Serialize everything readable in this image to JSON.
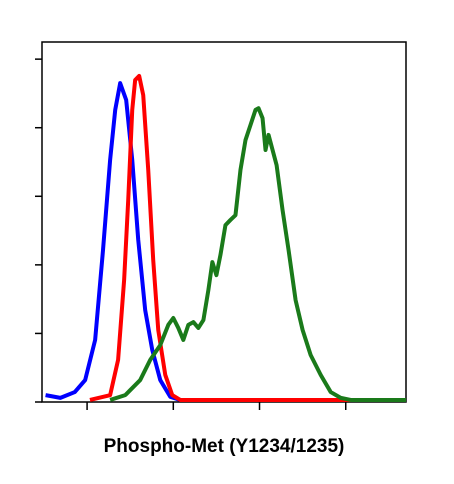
{
  "chart_data": {
    "type": "line",
    "x_label": "Phospho-Met (Y1234/1235)",
    "log_x": true,
    "xlim": [
      30,
      500000
    ],
    "xticks": [
      100,
      1000,
      10000,
      100000
    ],
    "ylim": [
      0,
      105
    ],
    "yticks": [
      0,
      20,
      40,
      60,
      80,
      100
    ],
    "grid": false,
    "series": [
      {
        "color": "#0000ff",
        "x": [
          33,
          49,
          72,
          95,
          124,
          153,
          185,
          212,
          242,
          284,
          334,
          392,
          472,
          570,
          706,
          923,
          1205
        ],
        "values": [
          2.0,
          1.2,
          2.9,
          6.4,
          18.1,
          44.3,
          70.6,
          85.2,
          93.0,
          88.1,
          70.6,
          47.3,
          26.8,
          15.2,
          6.4,
          1.5,
          0.6
        ]
      },
      {
        "color": "#ff0000",
        "x": [
          108,
          185,
          229,
          269,
          300,
          334,
          361,
          402,
          448,
          512,
          585,
          669,
          807,
          973,
          1205,
          500000
        ],
        "values": [
          0.6,
          2.0,
          12.3,
          35.6,
          58.9,
          85.2,
          93.9,
          95.1,
          89.5,
          67.7,
          41.4,
          21.0,
          7.9,
          2.0,
          0.6,
          0.6
        ]
      },
      {
        "color": "#1a7a1a",
        "x": [
          185,
          277,
          413,
          540,
          706,
          875,
          1000,
          1143,
          1307,
          1494,
          1709,
          1953,
          2234,
          2553,
          2838,
          3162,
          3523,
          4027,
          4603,
          5262,
          6015,
          6876,
          7860,
          8985,
          9730,
          10840,
          11740,
          12730,
          14170,
          15780,
          18500,
          21730,
          26220,
          31620,
          39170,
          51210,
          66960,
          87510,
          114300,
          500000
        ],
        "values": [
          0.6,
          2.0,
          6.4,
          12.3,
          16.6,
          22.5,
          24.5,
          21.6,
          18.1,
          22.5,
          23.3,
          21.6,
          23.9,
          32.7,
          40.8,
          37.0,
          42.9,
          51.6,
          53.1,
          54.5,
          67.7,
          76.4,
          80.8,
          85.2,
          85.7,
          82.8,
          73.5,
          77.9,
          73.5,
          69.1,
          56.0,
          44.3,
          29.7,
          21.0,
          13.7,
          7.9,
          2.9,
          1.2,
          0.6,
          0.6
        ]
      }
    ]
  }
}
